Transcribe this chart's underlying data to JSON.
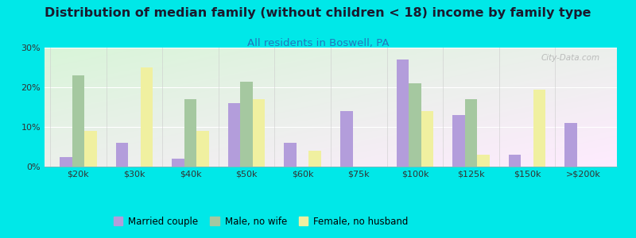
{
  "title": "Distribution of median family (without children < 18) income by family type",
  "subtitle": "All residents in Boswell, PA",
  "categories": [
    "$20k",
    "$30k",
    "$40k",
    "$50k",
    "$60k",
    "$75k",
    "$100k",
    "$125k",
    "$150k",
    ">$200k"
  ],
  "married_couple": [
    2.5,
    6.0,
    2.0,
    16.0,
    6.0,
    14.0,
    27.0,
    13.0,
    3.0,
    11.0
  ],
  "male_no_wife": [
    23.0,
    0.0,
    17.0,
    21.5,
    0.0,
    0.0,
    21.0,
    17.0,
    0.0,
    0.0
  ],
  "female_no_husband": [
    9.0,
    25.0,
    9.0,
    17.0,
    4.0,
    0.0,
    14.0,
    3.0,
    19.5,
    0.0
  ],
  "married_color": "#b39ddb",
  "male_color": "#a5c8a0",
  "female_color": "#f0f0a0",
  "background_color": "#00e8e8",
  "ylim": [
    0,
    30
  ],
  "yticks": [
    0,
    10,
    20,
    30
  ],
  "bar_width": 0.22,
  "title_fontsize": 11.5,
  "subtitle_fontsize": 9.5,
  "tick_fontsize": 8,
  "watermark": "City-Data.com"
}
